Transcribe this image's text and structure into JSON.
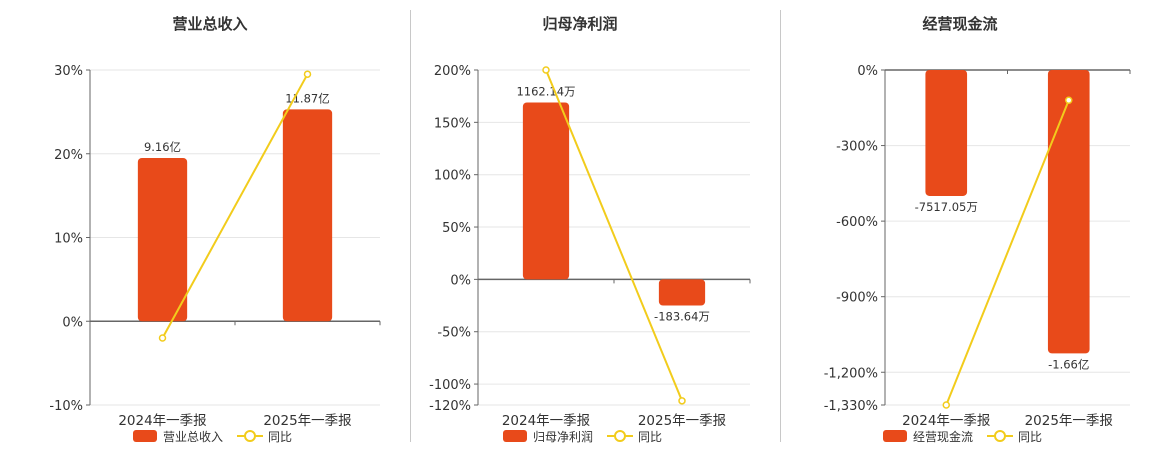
{
  "chart_data": [
    {
      "type": "bar",
      "title": "营业总收入",
      "categories": [
        "2024年一季报",
        "2025年一季报"
      ],
      "series": [
        {
          "name": "营业总收入",
          "kind": "bar",
          "axis": "left",
          "values": [
            19.5,
            25.3
          ],
          "labels": [
            "9.16亿",
            "11.87亿"
          ],
          "label_pos": "above"
        },
        {
          "name": "同比",
          "kind": "line",
          "axis": "left",
          "values": [
            -2,
            29.5
          ]
        }
      ],
      "ylim": [
        -10,
        30
      ],
      "yticks": [
        30,
        20,
        10,
        0,
        -10
      ],
      "ytick_labels": [
        "30%",
        "20%",
        "10%",
        "0%",
        "-10%"
      ],
      "grid": true,
      "legend": "bottom"
    },
    {
      "type": "bar",
      "title": "归母净利润",
      "categories": [
        "2024年一季报",
        "2025年一季报"
      ],
      "series": [
        {
          "name": "归母净利润",
          "kind": "bar",
          "axis": "left",
          "values": [
            169,
            -25
          ],
          "labels": [
            "1162.14万",
            "-183.64万"
          ],
          "label_pos": "outside"
        },
        {
          "name": "同比",
          "kind": "line",
          "axis": "left",
          "values": [
            200,
            -116
          ]
        }
      ],
      "ylim": [
        -120,
        200
      ],
      "yticks": [
        200,
        150,
        100,
        50,
        0,
        -50,
        -100,
        -120
      ],
      "ytick_labels": [
        "200%",
        "150%",
        "100%",
        "50%",
        "0%",
        "-50%",
        "-100%",
        "-120%"
      ],
      "grid": true,
      "legend": "bottom"
    },
    {
      "type": "bar",
      "title": "经营现金流",
      "categories": [
        "2024年一季报",
        "2025年一季报"
      ],
      "series": [
        {
          "name": "经营现金流",
          "kind": "bar",
          "axis": "left",
          "values": [
            -500,
            -1125
          ],
          "labels": [
            "-7517.05万",
            "-1.66亿"
          ],
          "label_pos": "outside"
        },
        {
          "name": "同比",
          "kind": "line",
          "axis": "left",
          "values": [
            -1330,
            -120
          ]
        }
      ],
      "ylim": [
        -1330,
        0
      ],
      "yticks": [
        0,
        -300,
        -600,
        -900,
        -1200,
        -1330
      ],
      "ytick_labels": [
        "0%",
        "-300%",
        "-600%",
        "-900%",
        "-1,200%",
        "-1,330%"
      ],
      "grid": true,
      "legend": "bottom"
    }
  ],
  "colors": {
    "bar": "#e84a1a",
    "line": "#f2cc1c",
    "grid": "#e6e6e6",
    "axis": "#666666",
    "text": "#333333"
  }
}
